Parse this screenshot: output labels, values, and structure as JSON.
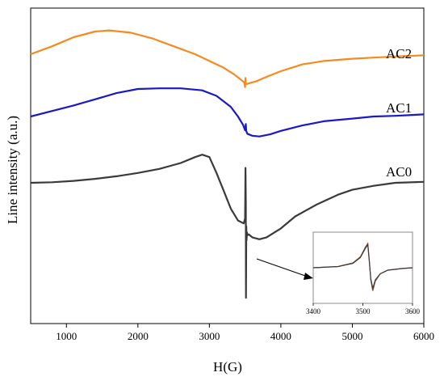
{
  "chart_data": {
    "type": "line",
    "xlabel": "H(G)",
    "ylabel": "Line intensity (a.u.)",
    "xlim": [
      500,
      6000
    ],
    "xticks": [
      1000,
      2000,
      3000,
      4000,
      5000,
      6000
    ],
    "y_ticks_shown": false,
    "grid": false,
    "legend": "none (series labels placed next to curves, right side)",
    "series": [
      {
        "name": "AC2",
        "color": "#F58A1F",
        "x": [
          500,
          800,
          1100,
          1400,
          1600,
          1900,
          2200,
          2500,
          2800,
          3000,
          3200,
          3350,
          3450,
          3490,
          3500,
          3505,
          3510,
          3520,
          3560,
          3650,
          3800,
          4000,
          4300,
          4600,
          5000,
          5300,
          5600,
          6000
        ],
        "y": [
          0.0,
          0.35,
          0.75,
          1.0,
          1.05,
          0.95,
          0.7,
          0.35,
          0.0,
          -0.3,
          -0.6,
          -0.9,
          -1.15,
          -1.25,
          -1.45,
          -1.05,
          -1.3,
          -1.32,
          -1.28,
          -1.2,
          -1.0,
          -0.75,
          -0.45,
          -0.3,
          -0.2,
          -0.15,
          -0.1,
          -0.05
        ]
      },
      {
        "name": "AC1",
        "color": "#1919C8",
        "x": [
          500,
          800,
          1100,
          1400,
          1700,
          2000,
          2300,
          2600,
          2900,
          3100,
          3300,
          3400,
          3470,
          3500,
          3510,
          3515,
          3530,
          3600,
          3700,
          3850,
          4000,
          4300,
          4600,
          5000,
          5300,
          5600,
          6000
        ],
        "y": [
          0.0,
          0.4,
          0.8,
          1.25,
          1.7,
          2.0,
          2.05,
          2.05,
          1.9,
          1.5,
          0.7,
          0.0,
          -0.6,
          -1.0,
          -0.55,
          -1.05,
          -1.25,
          -1.4,
          -1.45,
          -1.3,
          -1.05,
          -0.65,
          -0.35,
          -0.15,
          0.0,
          0.05,
          0.15
        ]
      },
      {
        "name": "AC0",
        "color": "#3A3A3A",
        "x": [
          500,
          800,
          1100,
          1400,
          1700,
          2000,
          2300,
          2600,
          2800,
          2900,
          3000,
          3100,
          3200,
          3300,
          3400,
          3480,
          3500,
          3505,
          3510,
          3512,
          3517,
          3520,
          3525,
          3530,
          3550,
          3600,
          3700,
          3800,
          4000,
          4200,
          4500,
          4800,
          5000,
          5300,
          5600,
          6000
        ],
        "y": [
          0.0,
          0.03,
          0.1,
          0.2,
          0.33,
          0.5,
          0.7,
          1.0,
          1.3,
          1.42,
          1.3,
          0.5,
          -0.4,
          -1.3,
          -1.9,
          -2.05,
          -1.8,
          0.75,
          -1.0,
          -5.8,
          -2.2,
          -2.9,
          -2.5,
          -2.65,
          -2.6,
          -2.75,
          -2.85,
          -2.75,
          -2.3,
          -1.7,
          -1.1,
          -0.6,
          -0.35,
          -0.15,
          0.0,
          0.05
        ]
      }
    ],
    "inset": {
      "xlim": [
        3400,
        3600
      ],
      "xticks": [
        3400,
        3500,
        3600
      ],
      "y_ticks_shown": false,
      "series": [
        {
          "name": "",
          "color": "#8B4A2A",
          "x": [
            3400,
            3450,
            3480,
            3495,
            3505,
            3510,
            3513,
            3516,
            3520,
            3525,
            3535,
            3550,
            3580,
            3600
          ],
          "y": [
            0.0,
            0.05,
            0.2,
            0.45,
            0.85,
            1.0,
            0.3,
            -0.5,
            -0.95,
            -0.55,
            -0.25,
            -0.1,
            -0.03,
            0.0
          ]
        },
        {
          "name": "",
          "color": "#3A3A3A",
          "x": [
            3400,
            3450,
            3480,
            3495,
            3505,
            3510,
            3513,
            3516,
            3520,
            3525,
            3535,
            3550,
            3580,
            3600
          ],
          "y": [
            0.0,
            0.05,
            0.18,
            0.42,
            0.8,
            0.95,
            0.25,
            -0.45,
            -0.85,
            -0.5,
            -0.25,
            -0.1,
            -0.03,
            0.0
          ]
        }
      ]
    }
  }
}
